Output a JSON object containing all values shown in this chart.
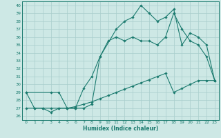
{
  "xlabel": "Humidex (Indice chaleur)",
  "background_color": "#cde8e5",
  "grid_color": "#a8cecc",
  "line_color": "#1a7a6e",
  "xlim": [
    -0.5,
    23.5
  ],
  "ylim": [
    25.5,
    40.5
  ],
  "yticks": [
    26,
    27,
    28,
    29,
    30,
    31,
    32,
    33,
    34,
    35,
    36,
    37,
    38,
    39,
    40
  ],
  "xticks": [
    0,
    1,
    2,
    3,
    4,
    5,
    6,
    7,
    8,
    9,
    10,
    11,
    12,
    13,
    14,
    15,
    16,
    17,
    18,
    19,
    20,
    21,
    22,
    23
  ],
  "line1_x": [
    0,
    1,
    2,
    3,
    4,
    5,
    6,
    7,
    8,
    9,
    10,
    11,
    12,
    13,
    14,
    15,
    16,
    17,
    18,
    19,
    20,
    21,
    22,
    23
  ],
  "line1_y": [
    27.0,
    27.0,
    27.0,
    27.0,
    27.0,
    27.0,
    27.2,
    27.5,
    27.8,
    28.2,
    28.6,
    29.0,
    29.4,
    29.8,
    30.2,
    30.6,
    31.0,
    31.4,
    29.0,
    29.5,
    30.0,
    30.5,
    30.5,
    30.5
  ],
  "line2_x": [
    0,
    1,
    2,
    3,
    4,
    5,
    6,
    7,
    8,
    9,
    10,
    11,
    12,
    13,
    14,
    15,
    16,
    17,
    18,
    19,
    20,
    21,
    22,
    23
  ],
  "line2_y": [
    29.0,
    27.0,
    27.0,
    26.5,
    27.0,
    27.0,
    27.0,
    29.5,
    31.0,
    33.5,
    35.5,
    36.0,
    35.5,
    36.0,
    35.5,
    35.5,
    35.0,
    36.0,
    39.0,
    37.0,
    35.5,
    35.0,
    33.5,
    30.5
  ],
  "line3_x": [
    0,
    3,
    4,
    5,
    6,
    7,
    8,
    9,
    11,
    12,
    13,
    14,
    15,
    16,
    17,
    18,
    19,
    20,
    21,
    22,
    23
  ],
  "line3_y": [
    29.0,
    29.0,
    29.0,
    27.0,
    27.0,
    27.0,
    27.5,
    33.5,
    37.0,
    38.0,
    38.5,
    40.0,
    39.0,
    38.0,
    38.5,
    39.5,
    35.0,
    36.5,
    36.0,
    35.0,
    30.5
  ]
}
